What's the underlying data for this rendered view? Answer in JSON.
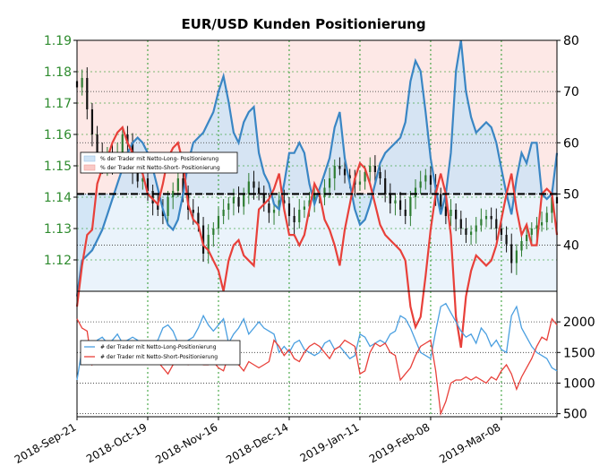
{
  "title": "EUR/USD Kunden Positionierung",
  "colors": {
    "long": "#3a86c4",
    "short": "#e8403a",
    "long_fill": "#cfe3f5",
    "short_fill": "#f9c9c6",
    "price_up": "#2e7d32",
    "price_down": "#111111",
    "grid": "#2a9a2a",
    "left_axis_text": "#2e8b2e"
  },
  "chart_data": [
    {
      "type": "line",
      "name": "price_and_sentiment",
      "x_ticks": [
        "2018-Sep-21",
        "2018-Oct-19",
        "2018-Nov-16",
        "2018-Dec-14",
        "2019-Jan-11",
        "2019-Feb-08",
        "2019-Mar-08"
      ],
      "y_left_ticks": [
        "1.19",
        "1.18",
        "1.17",
        "1.16",
        "1.15",
        "1.14",
        "1.13",
        "1.12"
      ],
      "y_left_lim": [
        1.11,
        1.19
      ],
      "y_right_ticks": [
        "80",
        "70",
        "60",
        "50",
        "40"
      ],
      "y_right_lim": [
        31,
        80
      ],
      "reference_line": 50,
      "legend": {
        "position": "left",
        "entries": [
          "% der Trader mit Netto-Long- Positionierung",
          "% der Trader mit Netto-Short- Positionierung"
        ]
      },
      "sentiment_long": [
        30,
        37,
        38,
        39,
        41,
        43,
        46,
        49,
        52,
        55,
        58,
        60,
        61,
        60,
        58,
        55,
        51,
        47,
        44,
        43,
        45,
        50,
        56,
        60,
        61,
        62,
        64,
        66,
        70,
        73,
        68,
        62,
        60,
        64,
        66,
        67,
        58,
        54,
        52,
        48,
        47,
        52,
        58,
        58,
        60,
        58,
        52,
        48,
        51,
        54,
        57,
        63,
        66,
        57,
        52,
        47,
        44,
        45,
        48,
        52,
        56,
        58,
        59,
        60,
        61,
        64,
        72,
        76,
        74,
        66,
        57,
        51,
        46,
        50,
        58,
        74,
        80,
        70,
        65,
        62,
        63,
        64,
        63,
        60,
        55,
        50,
        46,
        53,
        58,
        56,
        60,
        60,
        50,
        49,
        50,
        58
      ],
      "sentiment_short": [
        28,
        36,
        42,
        43,
        52,
        55,
        57,
        60,
        62,
        63,
        60,
        58,
        55,
        54,
        50,
        49,
        48,
        52,
        57,
        59,
        60,
        56,
        48,
        45,
        44,
        40,
        39,
        37,
        35,
        31,
        37,
        40,
        41,
        38,
        37,
        36,
        47,
        48,
        49,
        51,
        54,
        47,
        42,
        42,
        40,
        42,
        47,
        52,
        50,
        45,
        43,
        40,
        36,
        43,
        48,
        53,
        56,
        55,
        52,
        48,
        44,
        42,
        41,
        40,
        39,
        37,
        28,
        24,
        26,
        34,
        43,
        50,
        54,
        50,
        42,
        26,
        20,
        30,
        35,
        38,
        37,
        36,
        37,
        40,
        45,
        50,
        54,
        47,
        42,
        44,
        40,
        40,
        50,
        51,
        50,
        42
      ],
      "price_close": [
        1.175,
        1.178,
        1.168,
        1.16,
        1.154,
        1.15,
        1.154,
        1.151,
        1.154,
        1.16,
        1.157,
        1.148,
        1.145,
        1.146,
        1.142,
        1.138,
        1.136,
        1.134,
        1.14,
        1.142,
        1.146,
        1.141,
        1.136,
        1.135,
        1.131,
        1.122,
        1.128,
        1.13,
        1.134,
        1.136,
        1.138,
        1.14,
        1.137,
        1.141,
        1.145,
        1.143,
        1.141,
        1.138,
        1.135,
        1.136,
        1.139,
        1.138,
        1.134,
        1.132,
        1.136,
        1.137,
        1.139,
        1.141,
        1.14,
        1.143,
        1.146,
        1.15,
        1.149,
        1.147,
        1.146,
        1.144,
        1.145,
        1.148,
        1.15,
        1.148,
        1.146,
        1.141,
        1.138,
        1.139,
        1.136,
        1.134,
        1.14,
        1.143,
        1.145,
        1.147,
        1.144,
        1.141,
        1.137,
        1.134,
        1.136,
        1.133,
        1.13,
        1.128,
        1.129,
        1.131,
        1.133,
        1.134,
        1.133,
        1.13,
        1.128,
        1.125,
        1.119,
        1.123,
        1.126,
        1.128,
        1.13,
        1.131,
        1.132,
        1.135,
        1.14,
        1.138
      ]
    },
    {
      "type": "line",
      "name": "trader_counts",
      "y_right_ticks": [
        "2000",
        "1500",
        "1000",
        "500"
      ],
      "y_right_lim": [
        450,
        2500
      ],
      "legend": {
        "position": "left",
        "entries": [
          "# der Trader mit Netto-Long-Positionierung",
          "# der Trader mit Netto-Short-Positionierung"
        ]
      },
      "long_count": [
        1050,
        1550,
        1620,
        1480,
        1700,
        1750,
        1650,
        1700,
        1800,
        1650,
        1700,
        1750,
        1700,
        1500,
        1600,
        1650,
        1700,
        1900,
        1950,
        1850,
        1650,
        1600,
        1700,
        1750,
        1900,
        2100,
        1950,
        1850,
        1950,
        2050,
        1650,
        1800,
        1900,
        2050,
        1800,
        1900,
        2000,
        1900,
        1850,
        1800,
        1500,
        1600,
        1500,
        1650,
        1700,
        1550,
        1500,
        1450,
        1500,
        1650,
        1700,
        1550,
        1600,
        1500,
        1400,
        1450,
        1800,
        1750,
        1600,
        1650,
        1700,
        1650,
        1800,
        1850,
        2100,
        2050,
        1900,
        1700,
        1500,
        1450,
        1400,
        1850,
        2250,
        2300,
        2150,
        2000,
        1850,
        1750,
        1800,
        1650,
        1900,
        1800,
        1600,
        1700,
        1550,
        1500,
        2100,
        2250,
        1900,
        1750,
        1600,
        1500,
        1450,
        1400,
        1250,
        1200
      ],
      "short_count": [
        2050,
        1900,
        1850,
        1300,
        1400,
        1350,
        1500,
        1550,
        1500,
        1400,
        1350,
        1400,
        1500,
        1600,
        1550,
        1450,
        1350,
        1250,
        1150,
        1300,
        1400,
        1350,
        1300,
        1350,
        1350,
        1300,
        1300,
        1350,
        1250,
        1200,
        1450,
        1350,
        1300,
        1200,
        1350,
        1300,
        1250,
        1300,
        1350,
        1700,
        1600,
        1450,
        1550,
        1400,
        1350,
        1500,
        1600,
        1650,
        1600,
        1500,
        1400,
        1550,
        1600,
        1700,
        1650,
        1600,
        1150,
        1200,
        1500,
        1650,
        1600,
        1650,
        1500,
        1450,
        1050,
        1150,
        1250,
        1450,
        1600,
        1650,
        1700,
        1200,
        500,
        700,
        1000,
        1050,
        1050,
        1100,
        1050,
        1100,
        1050,
        1000,
        1100,
        1050,
        1200,
        1300,
        1150,
        900,
        1100,
        1250,
        1400,
        1600,
        1750,
        1700,
        2050,
        1950
      ]
    }
  ]
}
